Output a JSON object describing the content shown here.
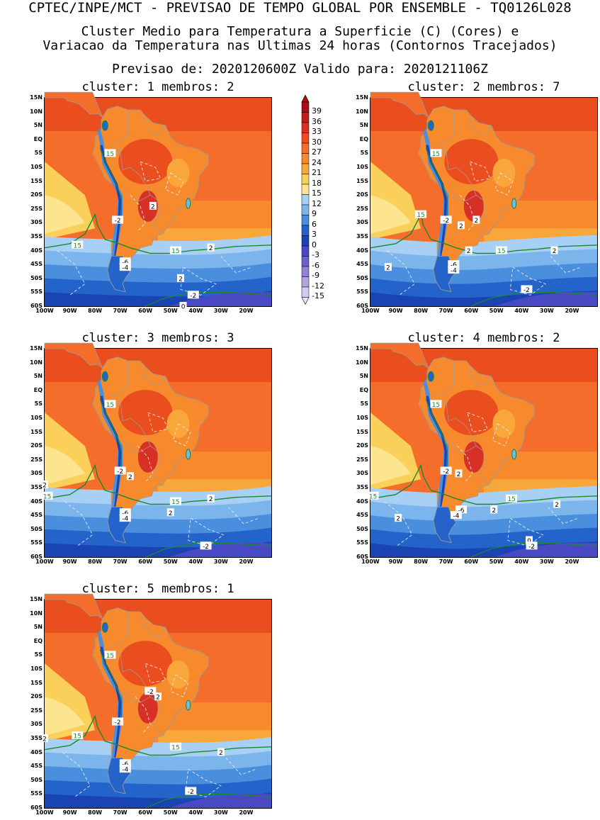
{
  "header": {
    "main_title": "CPTEC/INPE/MCT - PREVISAO DE TEMPO GLOBAL POR ENSEMBLE - TQ0126L028",
    "subtitle_line1": "Cluster Medio para Temperatura a Superficie (C) (Cores) e",
    "subtitle_line2": "Variacao da Temperatura nas Ultimas 24 horas (Contornos Tracejados)",
    "forecast_line": "Previsao de: 2020120600Z   Valido para: 2020121106Z"
  },
  "colorbar": {
    "levels": [
      "39",
      "36",
      "33",
      "30",
      "27",
      "24",
      "21",
      "18",
      "15",
      "12",
      "9",
      "6",
      "3",
      "0",
      "-3",
      "-6",
      "-9",
      "-12",
      "-15"
    ],
    "colors": [
      "#a50f15",
      "#c21e1e",
      "#d73027",
      "#ea4e1f",
      "#f46d2b",
      "#f78a2d",
      "#f9a73a",
      "#fbd05a",
      "#fce58e",
      "#a8d0f5",
      "#7cb5ec",
      "#4a8ede",
      "#2463c9",
      "#1a44b2",
      "#4a49c4",
      "#6f5fce",
      "#9480d8",
      "#b4a2e2",
      "#d3c8ee"
    ]
  },
  "map": {
    "lat_labels": [
      "15N",
      "10N",
      "5N",
      "EQ",
      "5S",
      "10S",
      "15S",
      "20S",
      "25S",
      "30S",
      "35S",
      "40S",
      "45S",
      "50S",
      "55S",
      "60S"
    ],
    "lon_labels": [
      "100W",
      "90W",
      "80W",
      "70W",
      "60W",
      "50W",
      "40W",
      "30W",
      "20W"
    ]
  },
  "panels": [
    {
      "title": "cluster: 1  membros: 2",
      "contour_labels": [
        {
          "text": "15",
          "lon": -74,
          "lat": -5
        },
        {
          "text": "15",
          "lon": -87,
          "lat": -38
        },
        {
          "text": "15",
          "lon": -48,
          "lat": -40
        },
        {
          "text": "2",
          "lon": -57,
          "lat": -24
        },
        {
          "text": "-2",
          "lon": -71,
          "lat": -29
        },
        {
          "text": "2",
          "lon": -34,
          "lat": -39
        },
        {
          "text": "-6",
          "lon": -68,
          "lat": -44
        },
        {
          "text": "-4",
          "lon": -68,
          "lat": -46
        },
        {
          "text": "2",
          "lon": -46,
          "lat": -50
        },
        {
          "text": "-2",
          "lon": -41,
          "lat": -56
        },
        {
          "text": "0",
          "lon": -45,
          "lat": -60
        }
      ]
    },
    {
      "title": "cluster: 2  membros: 7",
      "contour_labels": [
        {
          "text": "15",
          "lon": -74,
          "lat": -5
        },
        {
          "text": "15",
          "lon": -80,
          "lat": -27
        },
        {
          "text": "15",
          "lon": -48,
          "lat": -40
        },
        {
          "text": "2",
          "lon": -64,
          "lat": -31
        },
        {
          "text": "2",
          "lon": -58,
          "lat": -29
        },
        {
          "text": "-2",
          "lon": -70,
          "lat": -29
        },
        {
          "text": "2",
          "lon": -61,
          "lat": -40
        },
        {
          "text": "-6",
          "lon": -67,
          "lat": -45
        },
        {
          "text": "-4",
          "lon": -67,
          "lat": -47
        },
        {
          "text": "2",
          "lon": -27,
          "lat": -40
        },
        {
          "text": "2",
          "lon": -93,
          "lat": -46
        },
        {
          "text": "-2",
          "lon": -38,
          "lat": -54
        }
      ]
    },
    {
      "title": "cluster: 3  membros: 3",
      "contour_labels": [
        {
          "text": "15",
          "lon": -74,
          "lat": -5
        },
        {
          "text": "15",
          "lon": -99,
          "lat": -38
        },
        {
          "text": "15",
          "lon": -48,
          "lat": -40
        },
        {
          "text": "2",
          "lon": -100,
          "lat": -34
        },
        {
          "text": "-2",
          "lon": -70,
          "lat": -29
        },
        {
          "text": "2",
          "lon": -66,
          "lat": -31
        },
        {
          "text": "2",
          "lon": -34,
          "lat": -39
        },
        {
          "text": "-6",
          "lon": -68,
          "lat": -44
        },
        {
          "text": "-4",
          "lon": -68,
          "lat": -46
        },
        {
          "text": "2",
          "lon": -50,
          "lat": -44
        },
        {
          "text": "-2",
          "lon": -36,
          "lat": -56
        }
      ]
    },
    {
      "title": "cluster: 4  membros: 2",
      "contour_labels": [
        {
          "text": "15",
          "lon": -74,
          "lat": -5
        },
        {
          "text": "15",
          "lon": -99,
          "lat": -38
        },
        {
          "text": "15",
          "lon": -44,
          "lat": -39
        },
        {
          "text": "-2",
          "lon": -70,
          "lat": -29
        },
        {
          "text": "2",
          "lon": -65,
          "lat": -30
        },
        {
          "text": "-6",
          "lon": -64,
          "lat": -43
        },
        {
          "text": "-4",
          "lon": -66,
          "lat": -45
        },
        {
          "text": "2",
          "lon": -51,
          "lat": -43
        },
        {
          "text": "2",
          "lon": -26,
          "lat": -41
        },
        {
          "text": "2",
          "lon": -89,
          "lat": -46
        },
        {
          "text": "0",
          "lon": -37,
          "lat": -54
        },
        {
          "text": "-2",
          "lon": -36,
          "lat": -56
        }
      ]
    },
    {
      "title": "cluster: 5  membros: 1",
      "contour_labels": [
        {
          "text": "15",
          "lon": -74,
          "lat": -5
        },
        {
          "text": "15",
          "lon": -87,
          "lat": -34
        },
        {
          "text": "15",
          "lon": -48,
          "lat": -38
        },
        {
          "text": "-2",
          "lon": -58,
          "lat": -18
        },
        {
          "text": "2",
          "lon": -55,
          "lat": -20
        },
        {
          "text": "-2",
          "lon": -71,
          "lat": -29
        },
        {
          "text": "2",
          "lon": -100,
          "lat": -35
        },
        {
          "text": "2",
          "lon": -30,
          "lat": -40
        },
        {
          "text": "-6",
          "lon": -68,
          "lat": -44
        },
        {
          "text": "-4",
          "lon": -68,
          "lat": -46
        },
        {
          "text": "-2",
          "lon": -42,
          "lat": -54
        }
      ]
    }
  ]
}
